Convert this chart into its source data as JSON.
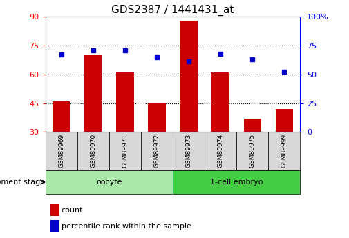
{
  "title": "GDS2387 / 1441431_at",
  "samples": [
    "GSM89969",
    "GSM89970",
    "GSM89971",
    "GSM89972",
    "GSM89973",
    "GSM89974",
    "GSM89975",
    "GSM89999"
  ],
  "count_values": [
    46,
    70,
    61,
    45,
    88,
    61,
    37,
    42
  ],
  "percentile_values": [
    67,
    71,
    71,
    65,
    61,
    68,
    63,
    52
  ],
  "left_ylim": [
    30,
    90
  ],
  "right_ylim": [
    0,
    100
  ],
  "left_yticks": [
    30,
    45,
    60,
    75,
    90
  ],
  "right_yticks": [
    0,
    25,
    50,
    75,
    100
  ],
  "right_yticklabels": [
    "0",
    "25",
    "50",
    "75",
    "100%"
  ],
  "bar_color": "#cc0000",
  "dot_color": "#0000cc",
  "groups": [
    {
      "label": "oocyte",
      "indices": [
        0,
        1,
        2,
        3
      ],
      "color": "#aae8aa"
    },
    {
      "label": "1-cell embryo",
      "indices": [
        4,
        5,
        6,
        7
      ],
      "color": "#44cc44"
    }
  ],
  "dev_stage_label": "development stage",
  "legend_count_label": "count",
  "legend_percentile_label": "percentile rank within the sample",
  "bar_width": 0.55,
  "title_fontsize": 11,
  "tick_fontsize": 8,
  "sample_fontsize": 6.5,
  "group_fontsize": 8,
  "legend_fontsize": 8
}
